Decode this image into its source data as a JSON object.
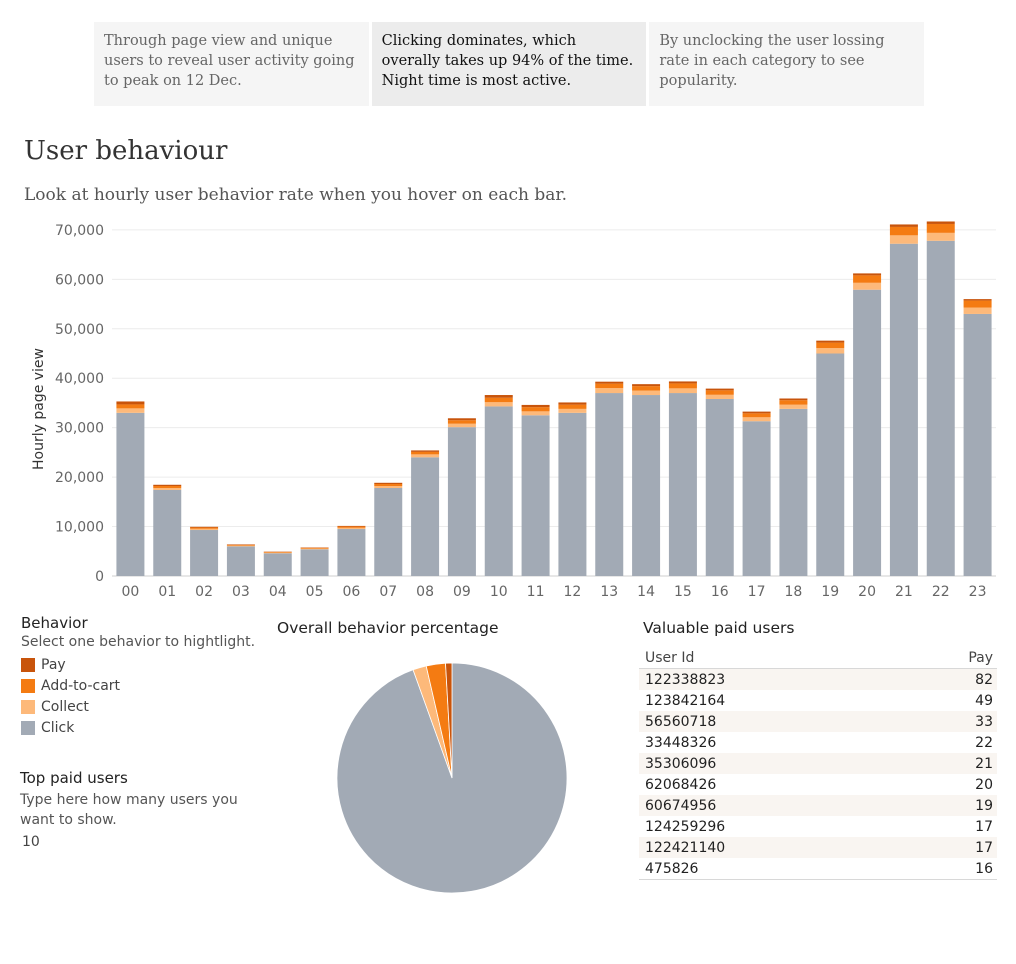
{
  "story_points": [
    {
      "text": "Through page view and unique users to reveal user activity going to peak on 12 Dec.",
      "active": false
    },
    {
      "text": "Clicking dominates, which overally takes up 94% of the time. Night time is most active.",
      "active": true
    },
    {
      "text": "By unclocking the user lossing rate in each category to see popularity.",
      "active": false
    }
  ],
  "header": {
    "title": "User behaviour",
    "subtitle": "Look at hourly user behavior rate when you hover on each bar."
  },
  "colors": {
    "click": "#a2aab5",
    "collect": "#fdb97a",
    "add_to_cart": "#f47b12",
    "pay": "#c8540b"
  },
  "legend": {
    "title": "Behavior",
    "hint": "Select one behavior to hightlight.",
    "items": [
      {
        "label": "Pay",
        "color": "#c8540b"
      },
      {
        "label": "Add-to-cart",
        "color": "#f47b12"
      },
      {
        "label": "Collect",
        "color": "#fdb97a"
      },
      {
        "label": "Click",
        "color": "#a2aab5"
      }
    ]
  },
  "top_paid": {
    "title": "Top paid users",
    "hint": "Type here how many users you want to show.",
    "value": "10"
  },
  "chart_data": [
    {
      "type": "bar",
      "stacked": true,
      "ylabel": "Hourly page view",
      "ylim": [
        0,
        72000
      ],
      "yticks": [
        0,
        10000,
        20000,
        30000,
        40000,
        50000,
        60000,
        70000
      ],
      "ytick_labels": [
        "0",
        "10,000",
        "20,000",
        "30,000",
        "40,000",
        "50,000",
        "60,000",
        "70,000"
      ],
      "grid": true,
      "categories": [
        "00",
        "01",
        "02",
        "03",
        "04",
        "05",
        "06",
        "07",
        "08",
        "09",
        "10",
        "11",
        "12",
        "13",
        "14",
        "15",
        "16",
        "17",
        "18",
        "19",
        "20",
        "21",
        "22",
        "23"
      ],
      "series": [
        {
          "name": "Click",
          "values": [
            33000,
            17400,
            9300,
            6000,
            4600,
            5400,
            9500,
            17800,
            24000,
            30100,
            34300,
            32500,
            33000,
            37000,
            36600,
            37000,
            35800,
            31300,
            33800,
            45000,
            57900,
            67200,
            67800,
            53000
          ]
        },
        {
          "name": "Collect",
          "values": [
            900,
            400,
            250,
            150,
            130,
            150,
            250,
            400,
            600,
            700,
            850,
            800,
            800,
            1000,
            900,
            950,
            850,
            800,
            850,
            1100,
            1400,
            1700,
            1600,
            1300
          ]
        },
        {
          "name": "Add-to-cart",
          "values": [
            800,
            400,
            250,
            150,
            120,
            150,
            250,
            400,
            500,
            700,
            900,
            850,
            850,
            900,
            900,
            1000,
            900,
            800,
            900,
            1100,
            1500,
            1700,
            1800,
            1400
          ]
        },
        {
          "name": "Pay",
          "values": [
            600,
            250,
            150,
            100,
            70,
            80,
            130,
            250,
            300,
            400,
            550,
            450,
            450,
            400,
            400,
            400,
            350,
            350,
            350,
            400,
            400,
            500,
            500,
            300
          ]
        }
      ]
    },
    {
      "type": "pie",
      "title": "Overall behavior percentage",
      "slices": [
        {
          "name": "Click",
          "value": 94.5
        },
        {
          "name": "Collect",
          "value": 1.9
        },
        {
          "name": "Add-to-cart",
          "value": 2.7
        },
        {
          "name": "Pay",
          "value": 0.9
        }
      ]
    },
    {
      "type": "table",
      "title": "Valuable paid users",
      "columns": [
        "User Id",
        "Pay"
      ],
      "rows": [
        [
          "122338823",
          "82"
        ],
        [
          "123842164",
          "49"
        ],
        [
          "56560718",
          "33"
        ],
        [
          "33448326",
          "22"
        ],
        [
          "35306096",
          "21"
        ],
        [
          "62068426",
          "20"
        ],
        [
          "60674956",
          "19"
        ],
        [
          "124259296",
          "17"
        ],
        [
          "122421140",
          "17"
        ],
        [
          "475826",
          "16"
        ]
      ]
    }
  ]
}
